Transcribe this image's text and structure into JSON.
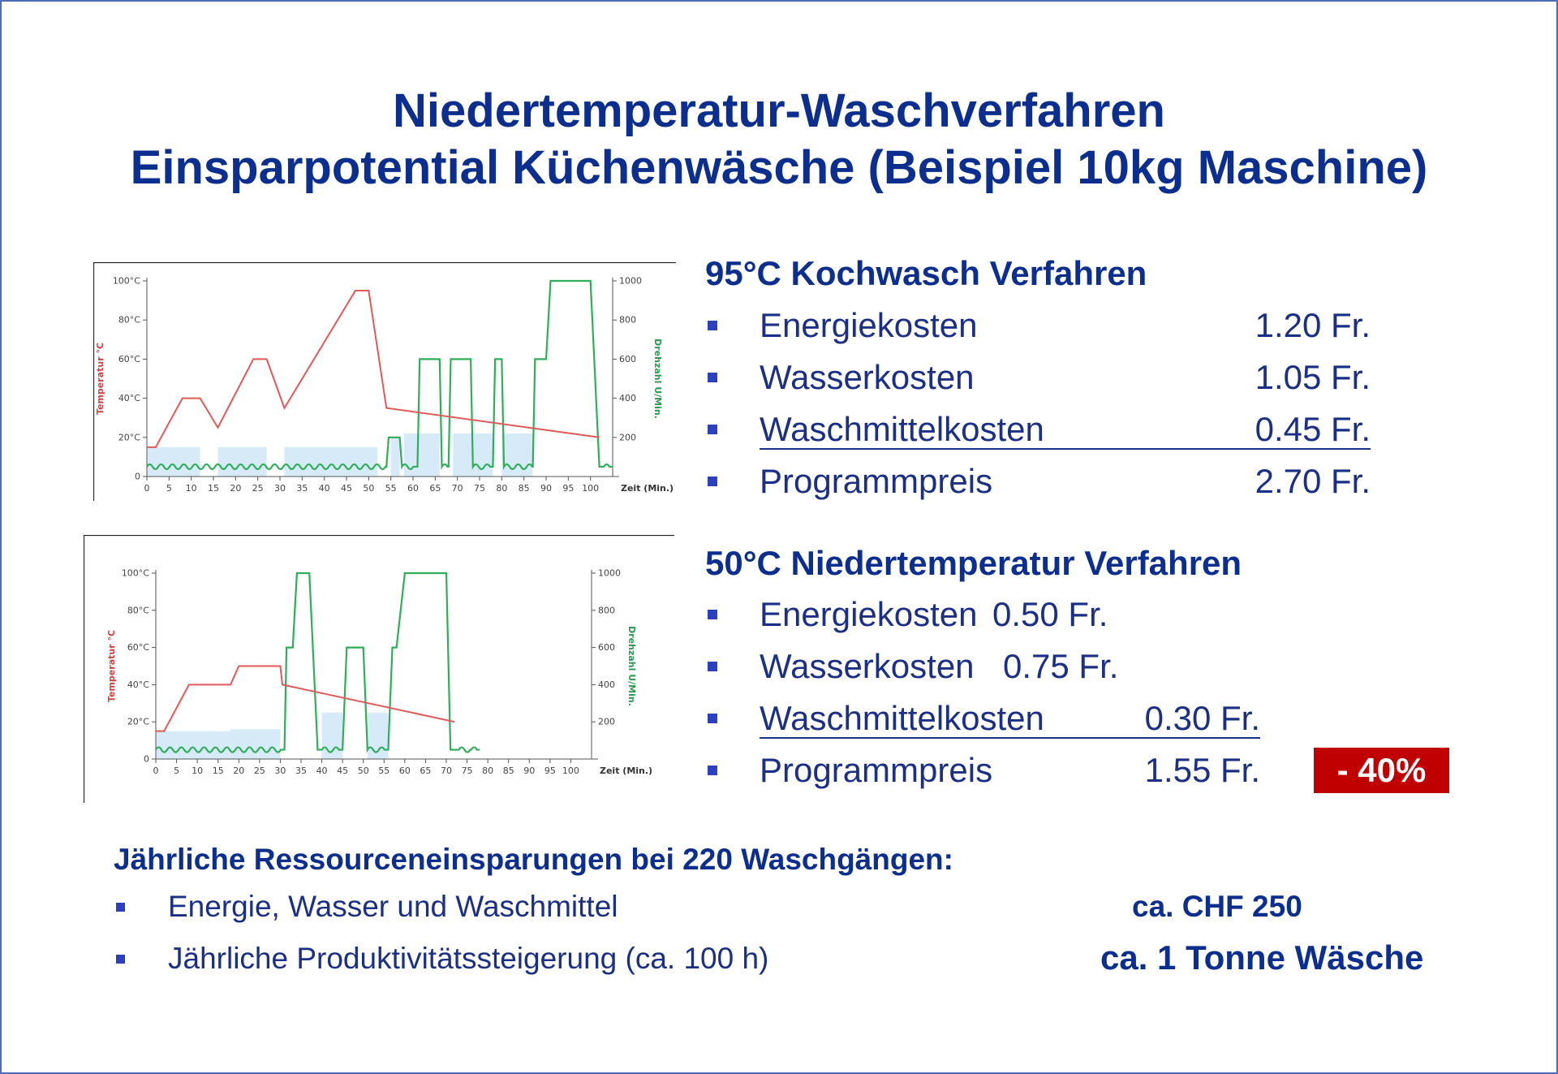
{
  "title": {
    "line1": "Niedertemperatur-Waschverfahren",
    "line2": "Einsparpotential Küchenwäsche (Beispiel 10kg Maschine)"
  },
  "section95": {
    "heading": "95°C Kochwasch Verfahren",
    "rows": [
      {
        "label": "Energiekosten",
        "value": "1.20 Fr."
      },
      {
        "label": "Wasserkosten",
        "value": "1.05 Fr."
      },
      {
        "label": "Waschmittelkosten",
        "value": "0.45 Fr."
      },
      {
        "label": "Programmpreis",
        "value": "2.70 Fr."
      }
    ]
  },
  "section50": {
    "heading": "50°C Niedertemperatur Verfahren",
    "rows": [
      {
        "label": "Energiekosten",
        "value": "0.50 Fr."
      },
      {
        "label": "Wasserkosten",
        "value": "0.75 Fr."
      },
      {
        "label": "Waschmittelkosten",
        "value": "0.30 Fr."
      },
      {
        "label": "Programmpreis",
        "value": "1.55 Fr."
      }
    ],
    "badge": "- 40%"
  },
  "savings": {
    "heading": "Jährliche Ressourceneinsparungen bei 220 Waschgängen:",
    "rows": [
      {
        "label": "Energie, Wasser und Waschmittel",
        "value": "ca. CHF 250"
      },
      {
        "label": "Jährliche Produktivitätssteigerung (ca. 100 h)",
        "value": "ca. 1 Tonne Wäsche"
      }
    ]
  },
  "colors": {
    "title": "#0b2e8f",
    "text": "#1b2f86",
    "bullet": "#2b3fbf",
    "badge": "#c00000",
    "temperature_line": "#e05a5a",
    "speed_line": "#2fae5a",
    "water_fill": "#d6eaf8"
  },
  "chart_data": [
    {
      "type": "line",
      "ylabel": "Temperatur °C",
      "y2label": "Drehzahl U/Min.",
      "xlabel": "Zeit (Min.)",
      "xlim": [
        0,
        105
      ],
      "ylim": [
        0,
        100
      ],
      "y2lim": [
        0,
        1000
      ],
      "xticks": [
        0,
        5,
        10,
        15,
        20,
        25,
        30,
        35,
        40,
        45,
        50,
        55,
        60,
        65,
        70,
        75,
        80,
        85,
        90,
        95,
        100
      ],
      "yticks": [
        "0",
        "20°C",
        "40°C",
        "60°C",
        "80°C",
        "100°C"
      ],
      "y2ticks": [
        "200",
        "400",
        "600",
        "800",
        "1000"
      ],
      "temperature": {
        "x": [
          0,
          2,
          8,
          12,
          16,
          24,
          27,
          31,
          47,
          50,
          54,
          102
        ],
        "y": [
          15,
          15,
          40,
          40,
          25,
          60,
          60,
          35,
          95,
          95,
          35,
          20
        ]
      },
      "speed": {
        "x": [
          0,
          54,
          54.5,
          57,
          57.5,
          61,
          61.5,
          66,
          66.5,
          68,
          68.5,
          73,
          73.5,
          78,
          78.5,
          80,
          80.5,
          87,
          87.5,
          90,
          91,
          96,
          100,
          102,
          103,
          105
        ],
        "y": [
          50,
          50,
          200,
          200,
          50,
          50,
          600,
          600,
          50,
          50,
          600,
          600,
          50,
          50,
          600,
          600,
          50,
          50,
          600,
          600,
          1000,
          1000,
          1000,
          50,
          50,
          50
        ]
      },
      "water_levels": [
        {
          "x": [
            0,
            12
          ],
          "y": 15
        },
        {
          "x": [
            16,
            27
          ],
          "y": 15
        },
        {
          "x": [
            31,
            52
          ],
          "y": 15
        },
        {
          "x": [
            55,
            57
          ],
          "y": 20
        },
        {
          "x": [
            58,
            66
          ],
          "y": 22
        },
        {
          "x": [
            69,
            78
          ],
          "y": 22
        },
        {
          "x": [
            80,
            87
          ],
          "y": 22
        }
      ]
    },
    {
      "type": "line",
      "ylabel": "Temperatur °C",
      "y2label": "Drehzahl U/Min.",
      "xlabel": "Zeit (Min.)",
      "xlim": [
        0,
        105
      ],
      "ylim": [
        0,
        100
      ],
      "y2lim": [
        0,
        1000
      ],
      "xticks": [
        0,
        5,
        10,
        15,
        20,
        25,
        30,
        35,
        40,
        45,
        50,
        55,
        60,
        65,
        70,
        75,
        80,
        85,
        90,
        95,
        100
      ],
      "yticks": [
        "0",
        "20°C",
        "40°C",
        "60°C",
        "80°C",
        "100°C"
      ],
      "y2ticks": [
        "200",
        "400",
        "600",
        "800",
        "1000"
      ],
      "temperature": {
        "x": [
          0,
          2,
          8,
          18,
          20,
          30,
          30.5,
          72
        ],
        "y": [
          15,
          15,
          40,
          40,
          50,
          50,
          40,
          20
        ]
      },
      "speed": {
        "x": [
          0,
          31,
          31.5,
          33,
          34,
          35,
          36,
          37,
          39,
          40,
          45,
          46,
          47,
          48,
          50,
          51,
          56,
          57,
          58,
          60,
          62,
          67,
          70,
          71,
          72,
          73,
          76,
          78
        ],
        "y": [
          50,
          50,
          600,
          600,
          1000,
          1000,
          1000,
          1000,
          50,
          50,
          50,
          600,
          600,
          600,
          600,
          50,
          50,
          600,
          600,
          1000,
          1000,
          1000,
          1000,
          50,
          50,
          50,
          50,
          50
        ]
      },
      "water_levels": [
        {
          "x": [
            0,
            18
          ],
          "y": 15
        },
        {
          "x": [
            18,
            30
          ],
          "y": 16
        },
        {
          "x": [
            40,
            45
          ],
          "y": 25
        },
        {
          "x": [
            51,
            56
          ],
          "y": 25
        }
      ]
    }
  ]
}
